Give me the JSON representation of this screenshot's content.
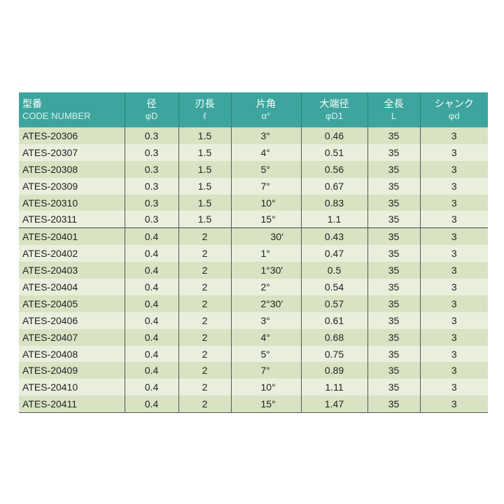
{
  "header": [
    {
      "jp": "型番",
      "sub": "CODE NUMBER"
    },
    {
      "jp": "径",
      "sub": "φD"
    },
    {
      "jp": "刃長",
      "sub": "ℓ"
    },
    {
      "jp": "片角",
      "sub": "α°"
    },
    {
      "jp": "大端径",
      "sub": "φD1"
    },
    {
      "jp": "全長",
      "sub": "L"
    },
    {
      "jp": "シャンク",
      "sub": "φd"
    }
  ],
  "rows": [
    [
      "ATES-20306",
      "0.3",
      "1.5",
      "3°",
      "0.46",
      "35",
      "3"
    ],
    [
      "ATES-20307",
      "0.3",
      "1.5",
      "4°",
      "0.51",
      "35",
      "3"
    ],
    [
      "ATES-20308",
      "0.3",
      "1.5",
      "5°",
      "0.56",
      "35",
      "3"
    ],
    [
      "ATES-20309",
      "0.3",
      "1.5",
      "7°",
      "0.67",
      "35",
      "3"
    ],
    [
      "ATES-20310",
      "0.3",
      "1.5",
      "10°",
      "0.83",
      "35",
      "3"
    ],
    [
      "ATES-20311",
      "0.3",
      "1.5",
      "15°",
      "1.1",
      "35",
      "3"
    ],
    [
      "ATES-20401",
      "0.4",
      "2",
      "　30′",
      "0.43",
      "35",
      "3"
    ],
    [
      "ATES-20402",
      "0.4",
      "2",
      "1°",
      "0.47",
      "35",
      "3"
    ],
    [
      "ATES-20403",
      "0.4",
      "2",
      "1°30′",
      "0.5",
      "35",
      "3"
    ],
    [
      "ATES-20404",
      "0.4",
      "2",
      "2°",
      "0.54",
      "35",
      "3"
    ],
    [
      "ATES-20405",
      "0.4",
      "2",
      "2°30′",
      "0.57",
      "35",
      "3"
    ],
    [
      "ATES-20406",
      "0.4",
      "2",
      "3°",
      "0.61",
      "35",
      "3"
    ],
    [
      "ATES-20407",
      "0.4",
      "2",
      "4°",
      "0.68",
      "35",
      "3"
    ],
    [
      "ATES-20408",
      "0.4",
      "2",
      "5°",
      "0.75",
      "35",
      "3"
    ],
    [
      "ATES-20409",
      "0.4",
      "2",
      "7°",
      "0.89",
      "35",
      "3"
    ],
    [
      "ATES-20410",
      "0.4",
      "2",
      "10°",
      "1.11",
      "35",
      "3"
    ],
    [
      "ATES-20411",
      "0.4",
      "2",
      "15°",
      "1.47",
      "35",
      "3"
    ]
  ],
  "colors": {
    "header": "#3da59e",
    "row_odd": "#d8e3c3",
    "row_even": "#e9efdc"
  }
}
